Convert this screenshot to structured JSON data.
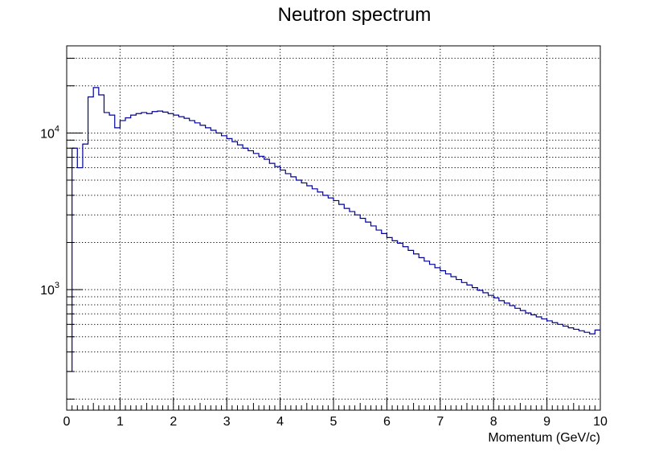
{
  "chart_data": {
    "type": "line",
    "style": "step-histogram",
    "title": "Neutron spectrum",
    "xlabel": "Momentum (GeV/c)",
    "ylabel": "",
    "xlim": [
      0,
      10
    ],
    "ylim": [
      170,
      36000
    ],
    "y_scale": "log",
    "grid": true,
    "legend": "none",
    "line_color": "#000099",
    "x_tick_labels": [
      "0",
      "1",
      "2",
      "3",
      "4",
      "5",
      "6",
      "7",
      "8",
      "9",
      "10"
    ],
    "y_tick_labels": [
      {
        "value": 1000,
        "base": "10",
        "exp": "3"
      },
      {
        "value": 10000,
        "base": "10",
        "exp": "4"
      }
    ],
    "bin_width": 0.1,
    "bin_edges_start": 0,
    "values": [
      300,
      8000,
      6000,
      8500,
      17000,
      19500,
      17500,
      13500,
      13000,
      10800,
      12000,
      12500,
      13000,
      13300,
      13500,
      13300,
      13700,
      13800,
      13600,
      13300,
      13000,
      12700,
      12400,
      12000,
      11600,
      11200,
      10800,
      10400,
      10000,
      9600,
      9200,
      8800,
      8400,
      8000,
      7700,
      7400,
      7100,
      6800,
      6400,
      6100,
      5800,
      5500,
      5250,
      5000,
      4800,
      4600,
      4400,
      4200,
      4000,
      3850,
      3700,
      3500,
      3300,
      3150,
      3000,
      2850,
      2700,
      2550,
      2400,
      2280,
      2150,
      2050,
      1980,
      1880,
      1780,
      1690,
      1600,
      1520,
      1450,
      1380,
      1320,
      1260,
      1210,
      1160,
      1110,
      1070,
      1030,
      990,
      955,
      920,
      885,
      850,
      820,
      790,
      760,
      735,
      710,
      690,
      670,
      650,
      632,
      615,
      600,
      585,
      570,
      558,
      546,
      534,
      522,
      552
    ]
  }
}
